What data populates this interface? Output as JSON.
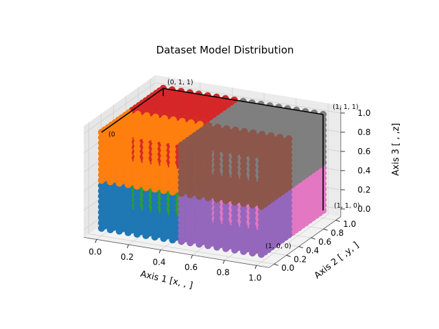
{
  "chart_data": {
    "type": "scatter",
    "projection": "3d",
    "title": "Dataset Model Distribution",
    "xlabel": "Axis 1 [x, , ]",
    "ylabel": "Axis 2 [ ,y, ]",
    "zlabel": "Axis 3 [ , ,z]",
    "xlim": [
      0,
      1
    ],
    "ylim": [
      0,
      1
    ],
    "zlim": [
      0,
      1
    ],
    "xticks": [
      "0.0",
      "0.2",
      "0.4",
      "0.6",
      "0.8",
      "1.0"
    ],
    "yticks": [
      "0.0",
      "0.2",
      "0.4",
      "0.6",
      "0.8",
      "1.0"
    ],
    "zticks": [
      "0.0",
      "0.2",
      "0.4",
      "0.6",
      "0.8",
      "1.0"
    ],
    "grid": true,
    "corner_labels": [
      {
        "text": "(0, 1, 1)"
      },
      {
        "text": "(1, 1, 1)"
      },
      {
        "text": "(1, 1, 0)"
      },
      {
        "text": "(1, 0, 0)"
      },
      {
        "text": "(0"
      }
    ],
    "series": [
      {
        "x": [
          0,
          0.5
        ],
        "y": [
          0,
          0.5
        ],
        "z": [
          0,
          0.5
        ],
        "color": "#1f77b4"
      },
      {
        "x": [
          0,
          0.5
        ],
        "y": [
          0,
          0.5
        ],
        "z": [
          0.5,
          1
        ],
        "color": "#ff7f0e"
      },
      {
        "x": [
          0,
          0.5
        ],
        "y": [
          0.5,
          1
        ],
        "z": [
          0,
          0.5
        ],
        "color": "#2ca02c"
      },
      {
        "x": [
          0,
          0.5
        ],
        "y": [
          0.5,
          1
        ],
        "z": [
          0.5,
          1
        ],
        "color": "#d62728"
      },
      {
        "x": [
          0.5,
          1
        ],
        "y": [
          0,
          0.5
        ],
        "z": [
          0,
          0.5
        ],
        "color": "#9467bd"
      },
      {
        "x": [
          0.5,
          1
        ],
        "y": [
          0,
          0.5
        ],
        "z": [
          0.5,
          1
        ],
        "color": "#8c564b"
      },
      {
        "x": [
          0.5,
          1
        ],
        "y": [
          0.5,
          1
        ],
        "z": [
          0,
          0.5
        ],
        "color": "#e377c2"
      },
      {
        "x": [
          0.5,
          1
        ],
        "y": [
          0.5,
          1
        ],
        "z": [
          0.5,
          1
        ],
        "color": "#7f7f7f"
      }
    ]
  }
}
